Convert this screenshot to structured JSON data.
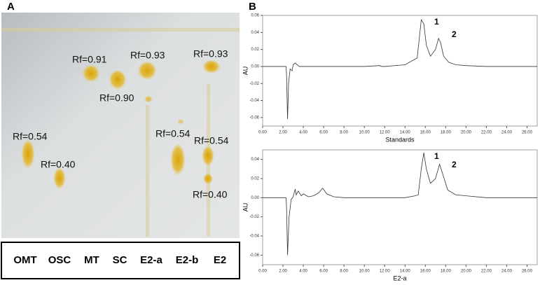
{
  "panel_labels": [
    "A",
    "B"
  ],
  "tlc": {
    "rf_labels": [
      "Rf=0.91",
      "Rf=0.90",
      "Rf=0.93",
      "Rf=0.93",
      "Rf=0.54",
      "Rf=0.40",
      "Rf=0.54",
      "Rf=0.54",
      "Rf=0.40"
    ],
    "lanes": [
      "OMT",
      "OSC",
      "MT",
      "SC",
      "E2-a",
      "E2-b",
      "E2"
    ]
  },
  "chart_data": [
    {
      "type": "line",
      "x_label": "Standards",
      "y_label": "AU",
      "peak_labels": [
        "1",
        "2"
      ],
      "color": "#333333",
      "x": [
        0,
        2.3,
        2.35,
        2.45,
        2.55,
        2.7,
        2.9,
        3.0,
        3.2,
        3.4,
        3.6,
        4,
        6,
        8,
        10,
        11.5,
        11.7,
        12,
        14,
        15.2,
        15.6,
        15.85,
        16.1,
        16.5,
        17.0,
        17.3,
        17.5,
        17.8,
        18.3,
        19,
        20,
        22,
        24,
        26,
        27
      ],
      "values": [
        0,
        0,
        -0.01,
        -0.062,
        -0.02,
        -0.003,
        -0.005,
        0.002,
        0.004,
        0.002,
        0,
        0,
        0,
        0,
        0,
        0.001,
        0,
        0,
        0.002,
        0.01,
        0.055,
        0.05,
        0.025,
        0.012,
        0.02,
        0.033,
        0.028,
        0.012,
        0.005,
        0.002,
        0.001,
        0,
        0,
        0,
        0
      ],
      "xlim": [
        0,
        27
      ],
      "ylim": [
        -0.07,
        0.06
      ],
      "xticks": [
        {
          "value": 0,
          "label": "0.00"
        },
        {
          "value": 2,
          "label": "2.00"
        },
        {
          "value": 4,
          "label": "4.00"
        },
        {
          "value": 6,
          "label": "6.00"
        },
        {
          "value": 8,
          "label": "8.00"
        },
        {
          "value": 10,
          "label": "10.00"
        },
        {
          "value": 12,
          "label": "12.00"
        },
        {
          "value": 14,
          "label": "14.00"
        },
        {
          "value": 16,
          "label": "16.00"
        },
        {
          "value": 18,
          "label": "18.00"
        },
        {
          "value": 20,
          "label": "20.00"
        },
        {
          "value": 22,
          "label": "22.00"
        },
        {
          "value": 24,
          "label": "24.00"
        },
        {
          "value": 26,
          "label": "26.00"
        }
      ],
      "yticks": [
        -0.06,
        -0.04,
        -0.02,
        {
          "value": 0,
          "label": "0.00"
        },
        0.02,
        0.04,
        0.06
      ]
    },
    {
      "type": "line",
      "x_label": "E2-a",
      "y_label": "AU",
      "peak_labels": [
        "1",
        "2"
      ],
      "color": "#333333",
      "x": [
        0,
        2.3,
        2.35,
        2.45,
        2.6,
        2.8,
        3.0,
        3.2,
        3.3,
        3.5,
        3.8,
        4.0,
        4.5,
        5.0,
        5.5,
        5.9,
        6.3,
        7,
        8,
        10,
        12,
        14,
        15,
        15.3,
        15.6,
        15.85,
        16.1,
        16.5,
        17.0,
        17.4,
        17.7,
        18.2,
        19,
        20,
        22,
        24,
        27
      ],
      "values": [
        0,
        0,
        -0.01,
        -0.06,
        -0.02,
        -0.002,
        0.001,
        0.009,
        0.003,
        0.007,
        0.002,
        0.004,
        0.001,
        0.002,
        0.005,
        0.01,
        0.004,
        0.001,
        0,
        0,
        0,
        0,
        0.002,
        0.003,
        0.03,
        0.047,
        0.03,
        0.015,
        0.02,
        0.035,
        0.025,
        0.008,
        0.003,
        0.002,
        0,
        0,
        0
      ],
      "xlim": [
        0,
        27
      ],
      "ylim": [
        -0.07,
        0.05
      ],
      "xticks": [
        {
          "value": 0,
          "label": "0.00"
        },
        {
          "value": 2,
          "label": "2.00"
        },
        {
          "value": 4,
          "label": "4.00"
        },
        {
          "value": 6,
          "label": "6.00"
        },
        {
          "value": 8,
          "label": "8.00"
        },
        {
          "value": 10,
          "label": "10.00"
        },
        {
          "value": 12,
          "label": "12.00"
        },
        {
          "value": 14,
          "label": "14.00"
        },
        {
          "value": 16,
          "label": "16.00"
        },
        {
          "value": 18,
          "label": "18.00"
        },
        {
          "value": 20,
          "label": "20.00"
        },
        {
          "value": 22,
          "label": "22.00"
        },
        {
          "value": 24,
          "label": "24.00"
        },
        {
          "value": 26,
          "label": "26.00"
        }
      ],
      "yticks": [
        -0.06,
        -0.04,
        -0.02,
        {
          "value": 0,
          "label": "0.00"
        },
        0.02,
        0.04
      ]
    }
  ]
}
